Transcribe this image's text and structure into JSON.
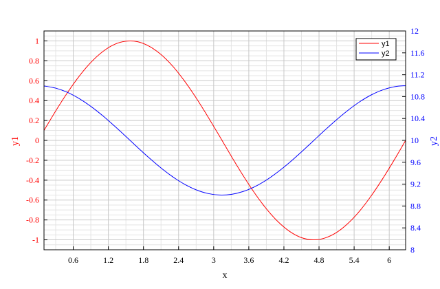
{
  "chart_data": {
    "type": "line",
    "xlabel": "x",
    "ylabel_left": "y1",
    "ylabel_right": "y2",
    "xlim": [
      0.1,
      6.28
    ],
    "ylim_left": [
      -1.1,
      1.1
    ],
    "ylim_right": [
      8,
      12
    ],
    "x_ticks": [
      "0.6",
      "1.2",
      "1.8",
      "2.4",
      "3",
      "3.6",
      "4.2",
      "4.8",
      "5.4",
      "6"
    ],
    "y_left_ticks": [
      "1",
      "0.8",
      "0.6",
      "0.4",
      "0.2",
      "0",
      "-0.2",
      "-0.4",
      "-0.6",
      "-0.8",
      "-1"
    ],
    "y_right_ticks": [
      "12",
      "11.6",
      "11.2",
      "10.8",
      "10.4",
      "10",
      "9.6",
      "9.2",
      "8.8",
      "8.4",
      "8"
    ],
    "grid": true,
    "legend_position": "top-right",
    "series": [
      {
        "name": "y1",
        "axis": "left",
        "color": "#ff0000",
        "x": [
          0.1,
          0.3,
          0.5,
          0.7,
          0.9,
          1.1,
          1.3,
          1.5,
          1.7,
          1.9,
          2.1,
          2.3,
          2.5,
          2.7,
          2.9,
          3.1,
          3.3,
          3.5,
          3.7,
          3.9,
          4.1,
          4.3,
          4.5,
          4.7,
          4.9,
          5.1,
          5.3,
          5.5,
          5.7,
          5.9,
          6.1,
          6.28
        ],
        "y": [
          0.1,
          0.296,
          0.479,
          0.644,
          0.783,
          0.891,
          0.964,
          0.997,
          0.992,
          0.946,
          0.863,
          0.746,
          0.598,
          0.427,
          0.239,
          0.042,
          -0.158,
          -0.351,
          -0.53,
          -0.688,
          -0.818,
          -0.916,
          -0.978,
          -1.0,
          -0.982,
          -0.926,
          -0.832,
          -0.706,
          -0.551,
          -0.374,
          -0.182,
          0.0
        ]
      },
      {
        "name": "y2",
        "axis": "right",
        "color": "#0000ff",
        "x": [
          0.1,
          0.3,
          0.5,
          0.7,
          0.9,
          1.1,
          1.3,
          1.5,
          1.7,
          1.9,
          2.1,
          2.3,
          2.5,
          2.7,
          2.9,
          3.1,
          3.3,
          3.5,
          3.7,
          3.9,
          4.1,
          4.3,
          4.5,
          4.7,
          4.9,
          5.1,
          5.3,
          5.5,
          5.7,
          5.9,
          6.1,
          6.28
        ],
        "y": [
          10.995,
          10.955,
          10.878,
          10.765,
          10.622,
          10.454,
          10.267,
          10.071,
          9.871,
          9.677,
          9.495,
          9.334,
          9.199,
          9.096,
          9.029,
          9.001,
          9.013,
          9.064,
          9.152,
          9.274,
          9.426,
          9.599,
          9.789,
          9.988,
          10.187,
          10.378,
          10.554,
          10.709,
          10.835,
          10.927,
          10.983,
          11.0
        ]
      }
    ]
  }
}
